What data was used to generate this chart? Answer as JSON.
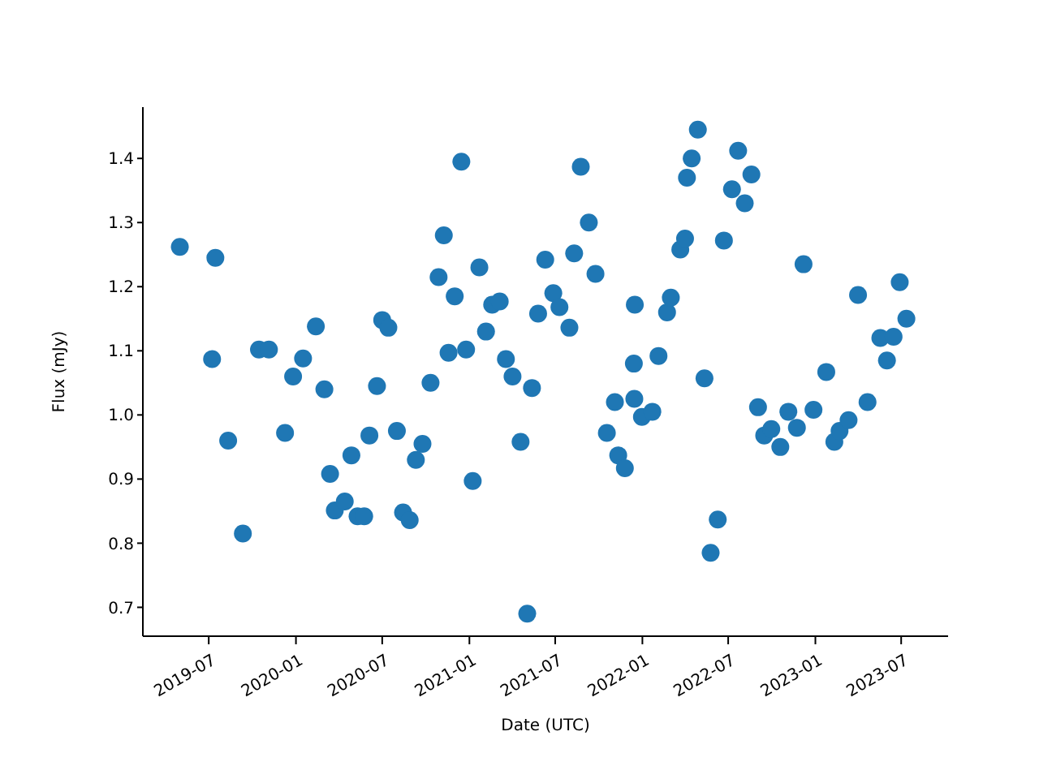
{
  "chart_data": {
    "type": "scatter",
    "xlabel": "Date (UTC)",
    "ylabel": "Flux (mJy)",
    "marker": "circle",
    "grid": false,
    "legend": false,
    "xlim": [
      "2019-02-12",
      "2023-10-08"
    ],
    "ylim": [
      0.655,
      1.48
    ],
    "xticks": [
      "2019-07",
      "2020-01",
      "2020-07",
      "2021-01",
      "2021-07",
      "2022-01",
      "2022-07",
      "2023-01",
      "2023-07"
    ],
    "yticks": [
      {
        "value": 0.7,
        "label": "0.7"
      },
      {
        "value": 0.8,
        "label": "0.8"
      },
      {
        "value": 0.9,
        "label": "0.9"
      },
      {
        "value": 1.0,
        "label": "1.0"
      },
      {
        "value": 1.1,
        "label": "1.1"
      },
      {
        "value": 1.2,
        "label": "1.2"
      },
      {
        "value": 1.3,
        "label": "1.3"
      },
      {
        "value": 1.4,
        "label": "1.4"
      }
    ],
    "series": [
      {
        "color": "#1f77b4",
        "x": [
          "2019-05-01",
          "2019-07-08",
          "2019-07-15",
          "2019-08-11",
          "2019-09-11",
          "2019-10-15",
          "2019-11-05",
          "2019-12-09",
          "2019-12-26",
          "2020-01-16",
          "2020-02-12",
          "2020-03-01",
          "2020-03-13",
          "2020-03-23",
          "2020-04-13",
          "2020-04-27",
          "2020-05-10",
          "2020-05-24",
          "2020-06-04",
          "2020-06-20",
          "2020-07-01",
          "2020-07-14",
          "2020-08-01",
          "2020-08-14",
          "2020-08-28",
          "2020-09-10",
          "2020-09-24",
          "2020-10-11",
          "2020-10-28",
          "2020-11-08",
          "2020-11-18",
          "2020-12-01",
          "2020-12-15",
          "2020-12-25",
          "2021-01-08",
          "2021-01-22",
          "2021-02-05",
          "2021-02-18",
          "2021-03-06",
          "2021-03-19",
          "2021-04-02",
          "2021-04-19",
          "2021-05-03",
          "2021-05-13",
          "2021-05-26",
          "2021-06-10",
          "2021-06-27",
          "2021-07-10",
          "2021-07-31",
          "2021-08-10",
          "2021-08-24",
          "2021-09-10",
          "2021-09-24",
          "2021-10-18",
          "2021-11-04",
          "2021-11-11",
          "2021-11-25",
          "2021-12-15",
          "2021-12-16",
          "2021-12-14",
          "2021-12-31",
          "2022-01-22",
          "2022-02-04",
          "2022-02-22",
          "2022-03-02",
          "2022-03-22",
          "2022-04-01",
          "2022-04-05",
          "2022-04-15",
          "2022-04-28",
          "2022-05-12",
          "2022-05-25",
          "2022-06-09",
          "2022-06-22",
          "2022-07-09",
          "2022-07-22",
          "2022-08-05",
          "2022-08-19",
          "2022-09-02",
          "2022-09-15",
          "2022-09-30",
          "2022-10-19",
          "2022-11-05",
          "2022-11-23",
          "2022-12-07",
          "2022-12-28",
          "2023-01-24",
          "2023-02-10",
          "2023-02-21",
          "2023-03-12",
          "2023-04-01",
          "2023-04-21",
          "2023-05-18",
          "2023-06-01",
          "2023-06-15",
          "2023-06-28",
          "2023-07-12"
        ],
        "values": [
          1.262,
          1.087,
          1.245,
          0.96,
          0.815,
          1.102,
          1.102,
          0.972,
          1.06,
          1.088,
          1.138,
          1.04,
          0.908,
          0.851,
          0.865,
          0.937,
          0.842,
          0.842,
          0.968,
          1.045,
          1.148,
          1.136,
          0.975,
          0.848,
          0.836,
          0.93,
          0.955,
          1.05,
          1.215,
          1.28,
          1.097,
          1.185,
          1.395,
          1.102,
          0.897,
          1.23,
          1.13,
          1.172,
          1.177,
          1.087,
          1.06,
          0.958,
          0.69,
          1.042,
          1.158,
          1.242,
          1.19,
          1.168,
          1.136,
          1.252,
          1.387,
          1.3,
          1.22,
          0.972,
          1.02,
          0.937,
          0.917,
          1.025,
          1.172,
          1.08,
          0.997,
          1.005,
          1.092,
          1.16,
          1.183,
          1.258,
          1.275,
          1.37,
          1.4,
          1.445,
          1.057,
          0.785,
          0.837,
          1.272,
          1.352,
          1.412,
          1.33,
          1.375,
          1.012,
          0.968,
          0.978,
          0.95,
          1.005,
          0.98,
          1.235,
          1.008,
          1.067,
          0.958,
          0.975,
          0.992,
          1.187,
          1.02,
          1.12,
          1.085,
          1.122,
          1.207,
          1.15
        ]
      }
    ]
  }
}
